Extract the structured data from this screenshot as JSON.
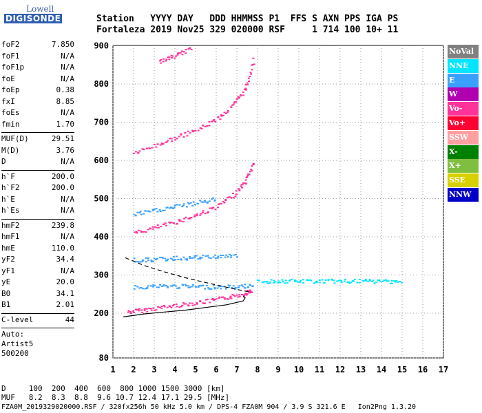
{
  "logo": {
    "line1": "Lowell",
    "line2": "DIGISONDE"
  },
  "header": {
    "labels": "Station   YYYY DAY   DDD HHMMSS P1  FFS S AXN PPS IGA PS",
    "values": "Fortaleza 2019 Nov25 329 020000 RSF     1 714 100 10+ 11"
  },
  "params": [
    {
      "k": "foF2",
      "v": "7.850"
    },
    {
      "k": "foF1",
      "v": "N/A"
    },
    {
      "k": "foF1p",
      "v": "N/A"
    },
    {
      "k": "foE",
      "v": "N/A"
    },
    {
      "k": "foEp",
      "v": "0.38"
    },
    {
      "k": "fxI",
      "v": "8.85"
    },
    {
      "k": "foEs",
      "v": "N/A"
    },
    {
      "k": "fmin",
      "v": "1.70"
    },
    {
      "sep": true
    },
    {
      "k": "MUF(D)",
      "v": "29.51"
    },
    {
      "k": "M(D)",
      "v": "3.76"
    },
    {
      "k": "D",
      "v": "N/A"
    },
    {
      "sep": true
    },
    {
      "k": "h`F",
      "v": "200.0"
    },
    {
      "k": "h`F2",
      "v": "200.0"
    },
    {
      "k": "h`E",
      "v": "N/A"
    },
    {
      "k": "h`Es",
      "v": "N/A"
    },
    {
      "sep": true
    },
    {
      "k": "hmF2",
      "v": "239.8"
    },
    {
      "k": "hmF1",
      "v": "N/A"
    },
    {
      "k": "hmE",
      "v": "110.0"
    },
    {
      "k": "yF2",
      "v": "34.4"
    },
    {
      "k": "yF1",
      "v": "N/A"
    },
    {
      "k": "yE",
      "v": "20.0"
    },
    {
      "k": "B0",
      "v": "34.1"
    },
    {
      "k": "B1",
      "v": "2.01"
    },
    {
      "sep": true
    },
    {
      "k": "C-level",
      "v": "44"
    },
    {
      "sep": true
    }
  ],
  "auto": [
    "Auto:",
    "Artist5",
    "500200"
  ],
  "legend": [
    {
      "label": "NoVal",
      "color": "#808080"
    },
    {
      "label": "NNE",
      "color": "#00e5ff"
    },
    {
      "label": "E",
      "color": "#3aa0ff"
    },
    {
      "label": "W",
      "color": "#b000b0"
    },
    {
      "label": "Vo-",
      "color": "#ff3399"
    },
    {
      "label": "Vo+",
      "color": "#ff0033"
    },
    {
      "label": "SSW",
      "color": "#ffa0a0"
    },
    {
      "label": "X-",
      "color": "#008000"
    },
    {
      "label": "X+",
      "color": "#7fbf40"
    },
    {
      "label": "SSE",
      "color": "#d8d000"
    },
    {
      "label": "NNW",
      "color": "#0000c8"
    }
  ],
  "footer": {
    "line1": "D     100  200  400  600  800 1000 1500 3000 [km]",
    "line2": "MUF   8.2  8.3  8.8  9.6 10.7 12.4 17.1 29.5 [MHz]"
  },
  "file_line": "FZA0M_2019329020000.RSF / 320fx256h 50 kHz 5.0 km / DPS-4 FZA0M 904 / 3.9 S 321.6 E   Ion2Png 1.3.20",
  "chart_data": {
    "type": "scatter",
    "x_ticks": [
      "1",
      "2",
      "3",
      "4",
      "5",
      "6",
      "7",
      "8",
      "9",
      "10",
      "11",
      "12",
      "13",
      "14",
      "15",
      "16",
      "17"
    ],
    "y_ticks": [
      "80",
      "200",
      "300",
      "400",
      "500",
      "600",
      "700",
      "800",
      "900"
    ],
    "xlim": [
      1,
      17
    ],
    "ylim": [
      80,
      900
    ],
    "grid": true,
    "traces": [
      {
        "name": "o1",
        "color": "#ff3399",
        "points": [
          [
            1.7,
            205
          ],
          [
            2.5,
            210
          ],
          [
            3.5,
            218
          ],
          [
            4.5,
            225
          ],
          [
            5.5,
            232
          ],
          [
            6.5,
            242
          ],
          [
            7.3,
            252
          ],
          [
            7.7,
            262
          ]
        ]
      },
      {
        "name": "o2",
        "color": "#ff3399",
        "points": [
          [
            2.0,
            410
          ],
          [
            3.0,
            425
          ],
          [
            4.0,
            440
          ],
          [
            5.0,
            458
          ],
          [
            6.0,
            480
          ],
          [
            6.8,
            510
          ],
          [
            7.4,
            545
          ],
          [
            7.8,
            600
          ]
        ]
      },
      {
        "name": "o3",
        "color": "#ff3399",
        "points": [
          [
            2.0,
            620
          ],
          [
            3.0,
            640
          ],
          [
            4.0,
            660
          ],
          [
            5.0,
            680
          ],
          [
            6.0,
            710
          ],
          [
            6.8,
            745
          ],
          [
            7.4,
            790
          ],
          [
            7.8,
            870
          ]
        ]
      },
      {
        "name": "o4",
        "color": "#ff3399",
        "points": [
          [
            3.2,
            860
          ],
          [
            4.0,
            875
          ],
          [
            4.8,
            895
          ]
        ]
      },
      {
        "name": "e1",
        "color": "#3aa0ff",
        "points": [
          [
            2.0,
            270
          ],
          [
            3.0,
            272
          ],
          [
            4.0,
            272
          ],
          [
            5.0,
            271
          ],
          [
            6.0,
            270
          ],
          [
            7.0,
            270
          ],
          [
            7.8,
            275
          ]
        ]
      },
      {
        "name": "e2",
        "color": "#3aa0ff",
        "points": [
          [
            2.0,
            340
          ],
          [
            3.0,
            342
          ],
          [
            4.0,
            345
          ],
          [
            5.0,
            347
          ],
          [
            6.0,
            350
          ],
          [
            7.0,
            352
          ]
        ]
      },
      {
        "name": "e3",
        "color": "#3aa0ff",
        "points": [
          [
            2.0,
            460
          ],
          [
            3.0,
            470
          ],
          [
            4.0,
            480
          ],
          [
            5.0,
            490
          ],
          [
            6.0,
            500
          ]
        ]
      },
      {
        "name": "spread",
        "color": "#00e5ff",
        "points": [
          [
            8.0,
            285
          ],
          [
            9.0,
            285
          ],
          [
            10.0,
            285
          ],
          [
            11.0,
            285
          ],
          [
            12.0,
            285
          ],
          [
            13.0,
            285
          ],
          [
            14.0,
            285
          ],
          [
            15.0,
            285
          ]
        ]
      }
    ],
    "profile": [
      [
        1.5,
        190
      ],
      [
        2.5,
        198
      ],
      [
        3.5,
        203
      ],
      [
        4.5,
        208
      ],
      [
        5.5,
        215
      ],
      [
        6.5,
        222
      ],
      [
        7.3,
        232
      ],
      [
        7.4,
        240
      ],
      [
        7.3,
        244
      ]
    ],
    "dashed": [
      [
        1.6,
        345
      ],
      [
        2.5,
        325
      ],
      [
        3.5,
        308
      ],
      [
        4.5,
        293
      ],
      [
        5.5,
        280
      ],
      [
        6.5,
        268
      ],
      [
        7.2,
        260
      ],
      [
        7.7,
        255
      ]
    ]
  }
}
